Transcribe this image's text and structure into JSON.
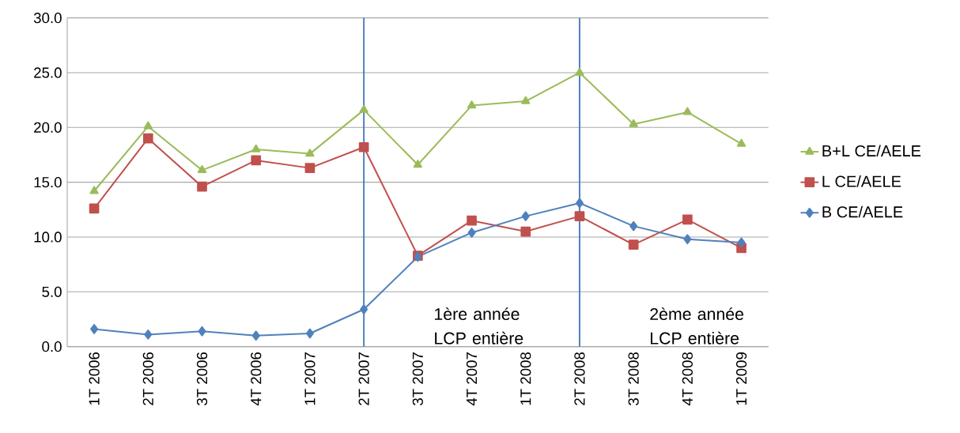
{
  "chart_data": {
    "type": "line",
    "categories": [
      "1T 2006",
      "2T 2006",
      "3T 2006",
      "4T 2006",
      "1T 2007",
      "2T 2007",
      "3T 2007",
      "4T 2007",
      "1T 2008",
      "2T 2008",
      "3T 2008",
      "4T 2008",
      "1T 2009"
    ],
    "series": [
      {
        "name": "B+L CE/AELE",
        "color": "#9bbb59",
        "marker": "triangle",
        "values": [
          14.2,
          20.1,
          16.1,
          18.0,
          17.6,
          21.6,
          16.6,
          22.0,
          22.4,
          25.0,
          20.3,
          21.4,
          18.5
        ]
      },
      {
        "name": "L CE/AELE",
        "color": "#c0504d",
        "marker": "square",
        "values": [
          12.6,
          19.0,
          14.6,
          17.0,
          16.3,
          18.2,
          8.3,
          11.5,
          10.5,
          11.9,
          9.3,
          11.6,
          9.0
        ]
      },
      {
        "name": "B CE/AELE",
        "color": "#4f81bd",
        "marker": "diamond",
        "values": [
          1.6,
          1.1,
          1.4,
          1.0,
          1.2,
          3.4,
          8.2,
          10.4,
          11.9,
          13.1,
          11.0,
          9.8,
          9.5
        ]
      }
    ],
    "ylim": [
      0,
      30
    ],
    "yticks": [
      {
        "value": 0,
        "label": "0.0"
      },
      {
        "value": 5,
        "label": "5.0"
      },
      {
        "value": 10,
        "label": "10.0"
      },
      {
        "value": 15,
        "label": "15.0"
      },
      {
        "value": 20,
        "label": "20.0"
      },
      {
        "value": 25,
        "label": "25.0"
      },
      {
        "value": 30,
        "label": "30.0"
      }
    ],
    "ref_lines": [
      {
        "axis": "x",
        "value": "2T 2007",
        "color": "#4f81bd"
      },
      {
        "axis": "x",
        "value": "2T 2008",
        "color": "#4f81bd"
      }
    ],
    "annotations": [
      "1ère année LCP entière",
      "2ème année LCP entière"
    ],
    "grid": "y",
    "legend": "right"
  }
}
